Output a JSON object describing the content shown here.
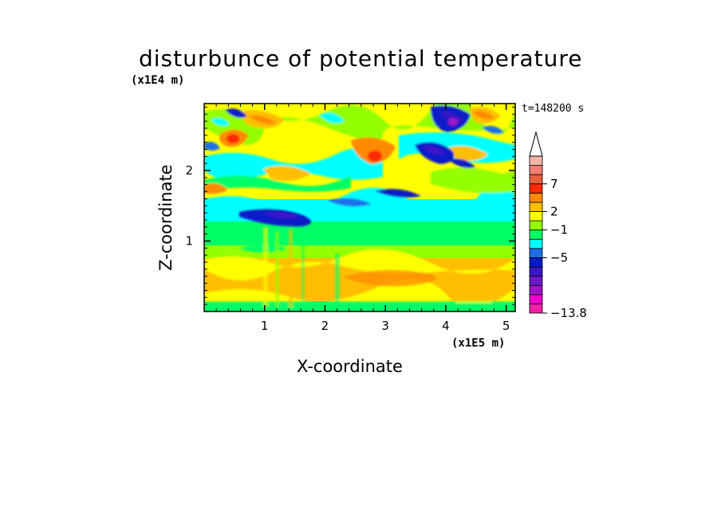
{
  "chart_data": {
    "type": "heatmap",
    "title": "disturbunce of potential temperature",
    "xlabel": "X-coordinate",
    "ylabel": "Z-coordinate",
    "x_unit": "(x1E5 m)",
    "y_unit": "(x1E4 m)",
    "time_label": "t=148200 s",
    "xlim": [
      0,
      5.15
    ],
    "ylim": [
      0,
      2.95
    ],
    "x_ticks": [
      1,
      2,
      3,
      4,
      5
    ],
    "y_ticks": [
      1,
      2
    ],
    "colorbar": {
      "colors": [
        "#f41ea8",
        "#ee00cc",
        "#9f12c8",
        "#6a1ac7",
        "#3a16c7",
        "#0c1ac8",
        "#1a6fe8",
        "#00ffff",
        "#00ff66",
        "#93ff00",
        "#ffff00",
        "#ffbf00",
        "#ff8a00",
        "#ff2a00",
        "#e8603e",
        "#f07f74",
        "#f2b6a7"
      ],
      "labels": [
        {
          "text": "7",
          "level": 7
        },
        {
          "text": "2",
          "level": 2
        },
        {
          "text": "−1",
          "level": -1
        },
        {
          "text": "−5",
          "level": -5
        },
        {
          "text": "−13.8",
          "level": -13.8
        }
      ],
      "extend_max": true
    },
    "field_bands": [
      {
        "z_range": [
          0,
          0.08
        ],
        "value": 0
      },
      {
        "z_range": [
          0.08,
          0.45
        ],
        "value": 1.5
      },
      {
        "z_range": [
          0.45,
          0.85
        ],
        "value": 2
      },
      {
        "z_range": [
          0.85,
          1.0
        ],
        "value": 0.5
      },
      {
        "z_range": [
          1.0,
          1.25
        ],
        "value": 0
      },
      {
        "z_range": [
          1.25,
          1.5
        ],
        "value": -1
      },
      {
        "z_range": [
          1.5,
          2.95
        ],
        "value": "mixed, -6 to 8"
      }
    ],
    "extrema": [
      {
        "x": 4.1,
        "z": 2.7,
        "value": -10
      },
      {
        "x": 0.5,
        "z": 2.45,
        "value": 7
      },
      {
        "x": 2.8,
        "z": 2.15,
        "value": 7
      },
      {
        "x": 1.2,
        "z": 1.35,
        "value": -5
      }
    ]
  }
}
